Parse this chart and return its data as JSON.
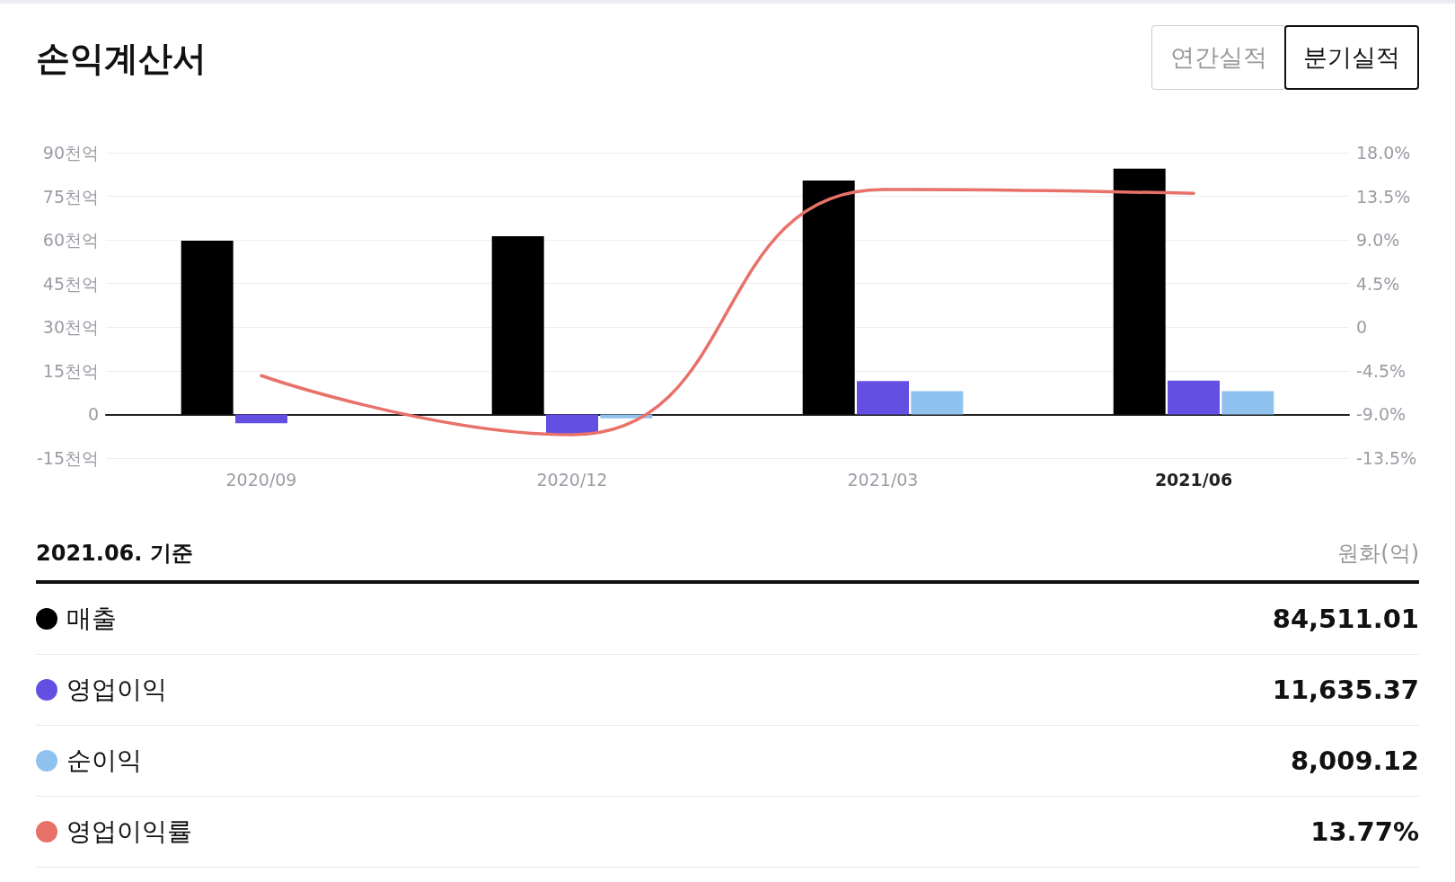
{
  "chart_data": [
    {
      "type": "bar",
      "title": "손익계산서",
      "annotations": [
        "연간실적",
        "분기실적"
      ],
      "categories": [
        "2020/09",
        "2020/12",
        "2021/03",
        "2021/06"
      ],
      "series": [
        {
          "color": "#000000",
          "values": [
            59.7,
            61.3,
            80.4,
            84.5
          ]
        },
        {
          "color": "#6350e3",
          "values": [
            -3.0,
            -6.7,
            11.5,
            11.6
          ]
        },
        {
          "color": "#90c2f0",
          "values": [
            null,
            -1.3,
            8.0,
            8.0
          ]
        },
        {
          "type": "line",
          "axis": "y2",
          "color": "#e8716a",
          "values": [
            -5.0,
            -11.1,
            14.2,
            13.8
          ]
        }
      ],
      "ylim": [
        -15,
        90
      ],
      "yticks": [
        {
          "value": -15,
          "label": "-15천억"
        },
        {
          "value": 0,
          "label": "0"
        },
        {
          "value": 15,
          "label": "15천억"
        },
        {
          "value": 30,
          "label": "30천억"
        },
        {
          "value": 45,
          "label": "45천억"
        },
        {
          "value": 60,
          "label": "60천억"
        },
        {
          "value": 75,
          "label": "75천억"
        },
        {
          "value": 90,
          "label": "90천억"
        }
      ],
      "y2lim": [
        -13.5,
        18
      ],
      "y2ticks": [
        {
          "value": -13.5,
          "label": "-13.5%"
        },
        {
          "value": -9,
          "label": "-9.0%"
        },
        {
          "value": -4.5,
          "label": "-4.5%"
        },
        {
          "value": 0,
          "label": "0"
        },
        {
          "value": 4.5,
          "label": "4.5%"
        },
        {
          "value": 9,
          "label": "9.0%"
        },
        {
          "value": 13.5,
          "label": "13.5%"
        },
        {
          "value": 18,
          "label": "18.0%"
        }
      ],
      "grid": "y",
      "marker": "none",
      "line_style": "solid"
    },
    {
      "type": "other",
      "title": "2021.06. 기준",
      "annotations": [
        "원화(억)"
      ],
      "categories": [
        "매출",
        "영업이익",
        "순이익",
        "영업이익률"
      ],
      "colors": [
        "#000000",
        "#6350e3",
        "#90c2f0",
        "#e8716a"
      ],
      "value_labels": [
        "84,511.01",
        "11,635.37",
        "8,009.12",
        "13.77%"
      ]
    }
  ]
}
